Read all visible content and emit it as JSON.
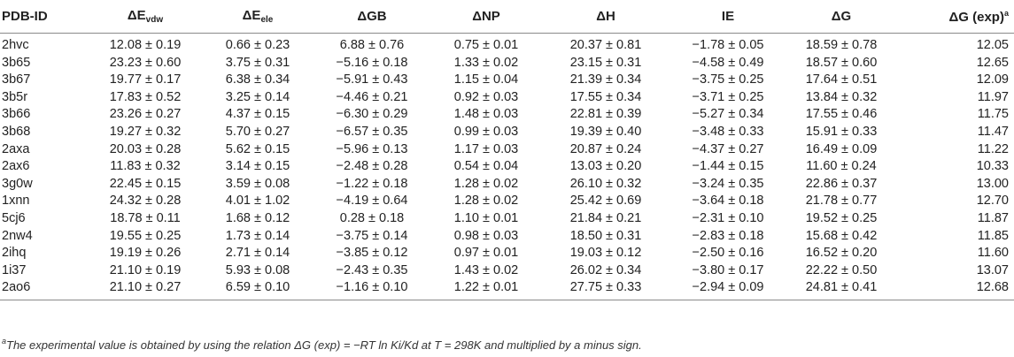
{
  "table": {
    "headers": [
      {
        "main": "PDB-ID"
      },
      {
        "main": "ΔE",
        "sub": "vdw"
      },
      {
        "main": "ΔE",
        "sub": "ele"
      },
      {
        "main": "ΔGB"
      },
      {
        "main": "ΔNP"
      },
      {
        "main": "ΔH"
      },
      {
        "main": "IE"
      },
      {
        "main": "ΔG"
      },
      {
        "main": "ΔG (exp)",
        "sup": "a"
      }
    ],
    "rows": [
      [
        "2hvc",
        "12.08 ± 0.19",
        "0.66 ± 0.23",
        "6.88 ± 0.76",
        "0.75 ± 0.01",
        "20.37 ± 0.81",
        "−1.78 ± 0.05",
        "18.59 ± 0.78",
        "12.05"
      ],
      [
        "3b65",
        "23.23 ± 0.60",
        "3.75 ± 0.31",
        "−5.16 ± 0.18",
        "1.33 ± 0.02",
        "23.15 ± 0.31",
        "−4.58 ± 0.49",
        "18.57 ± 0.60",
        "12.65"
      ],
      [
        "3b67",
        "19.77 ± 0.17",
        "6.38 ± 0.34",
        "−5.91 ± 0.43",
        "1.15 ± 0.04",
        "21.39 ± 0.34",
        "−3.75 ± 0.25",
        "17.64 ± 0.51",
        "12.09"
      ],
      [
        "3b5r",
        "17.83 ± 0.52",
        "3.25 ± 0.14",
        "−4.46 ± 0.21",
        "0.92 ± 0.03",
        "17.55 ± 0.34",
        "−3.71 ± 0.25",
        "13.84 ± 0.32",
        "11.97"
      ],
      [
        "3b66",
        "23.26 ± 0.27",
        "4.37 ± 0.15",
        "−6.30 ± 0.29",
        "1.48 ± 0.03",
        "22.81 ± 0.39",
        "−5.27 ± 0.34",
        "17.55 ± 0.46",
        "11.75"
      ],
      [
        "3b68",
        "19.27 ± 0.32",
        "5.70 ± 0.27",
        "−6.57 ± 0.35",
        "0.99 ± 0.03",
        "19.39 ± 0.40",
        "−3.48 ± 0.33",
        "15.91 ± 0.33",
        "11.47"
      ],
      [
        "2axa",
        "20.03 ± 0.28",
        "5.62 ± 0.15",
        "−5.96 ± 0.13",
        "1.17 ± 0.03",
        "20.87 ± 0.24",
        "−4.37 ± 0.27",
        "16.49 ± 0.09",
        "11.22"
      ],
      [
        "2ax6",
        "11.83 ± 0.32",
        "3.14 ± 0.15",
        "−2.48 ± 0.28",
        "0.54 ± 0.04",
        "13.03 ± 0.20",
        "−1.44 ± 0.15",
        "11.60 ± 0.24",
        "10.33"
      ],
      [
        "3g0w",
        "22.45 ± 0.15",
        "3.59 ± 0.08",
        "−1.22 ± 0.18",
        "1.28 ± 0.02",
        "26.10 ± 0.32",
        "−3.24 ± 0.35",
        "22.86 ± 0.37",
        "13.00"
      ],
      [
        "1xnn",
        "24.32 ± 0.28",
        "4.01 ± 1.02",
        "−4.19 ± 0.64",
        "1.28 ± 0.02",
        "25.42 ± 0.69",
        "−3.64 ± 0.18",
        "21.78 ± 0.77",
        "12.70"
      ],
      [
        "5cj6",
        "18.78 ± 0.11",
        "1.68 ± 0.12",
        "0.28 ± 0.18",
        "1.10 ± 0.01",
        "21.84 ± 0.21",
        "−2.31 ± 0.10",
        "19.52 ± 0.25",
        "11.87"
      ],
      [
        "2nw4",
        "19.55 ± 0.25",
        "1.73 ± 0.14",
        "−3.75 ± 0.14",
        "0.98 ± 0.03",
        "18.50 ± 0.31",
        "−2.83 ± 0.18",
        "15.68 ± 0.42",
        "11.85"
      ],
      [
        "2ihq",
        "19.19 ± 0.26",
        "2.71 ± 0.14",
        "−3.85 ± 0.12",
        "0.97 ± 0.01",
        "19.03 ± 0.12",
        "−2.50 ± 0.16",
        "16.52 ± 0.20",
        "11.60"
      ],
      [
        "1i37",
        "21.10 ± 0.19",
        "5.93 ± 0.08",
        "−2.43 ± 0.35",
        "1.43 ± 0.02",
        "26.02 ± 0.34",
        "−3.80 ± 0.17",
        "22.22 ± 0.50",
        "13.07"
      ],
      [
        "2ao6",
        "21.10 ± 0.27",
        "6.59 ± 0.10",
        "−1.16 ± 0.10",
        "1.22 ± 0.01",
        "27.75 ± 0.33",
        "−2.94 ± 0.09",
        "24.81 ± 0.41",
        "12.68"
      ]
    ]
  },
  "footnote": {
    "marker": "a",
    "text": "The experimental value is obtained by using the relation ΔG (exp) = −RT ln Ki/Kd at T = 298K and multiplied by a minus sign."
  }
}
